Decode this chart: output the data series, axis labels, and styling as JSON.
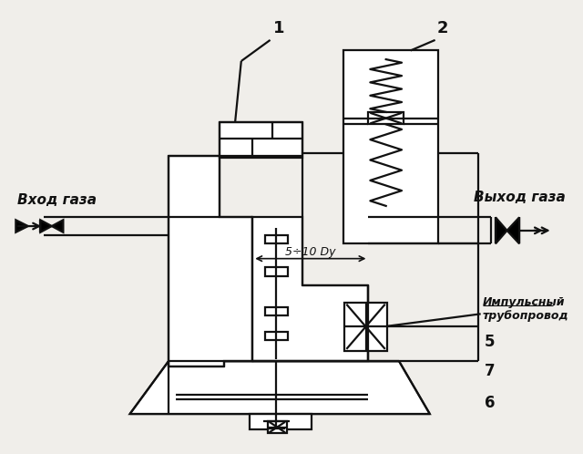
{
  "bg_color": "#f0eeea",
  "line_color": "#111111",
  "lw": 1.6,
  "label_vkhod": "Вход газа",
  "label_vykhod": "Выход газа",
  "label_impuls": "Импульсный\nтрубопровод",
  "label_5_10": "5÷10 Dу",
  "num1": "1",
  "num2": "2",
  "num5": "5",
  "num6": "6",
  "num7": "7"
}
